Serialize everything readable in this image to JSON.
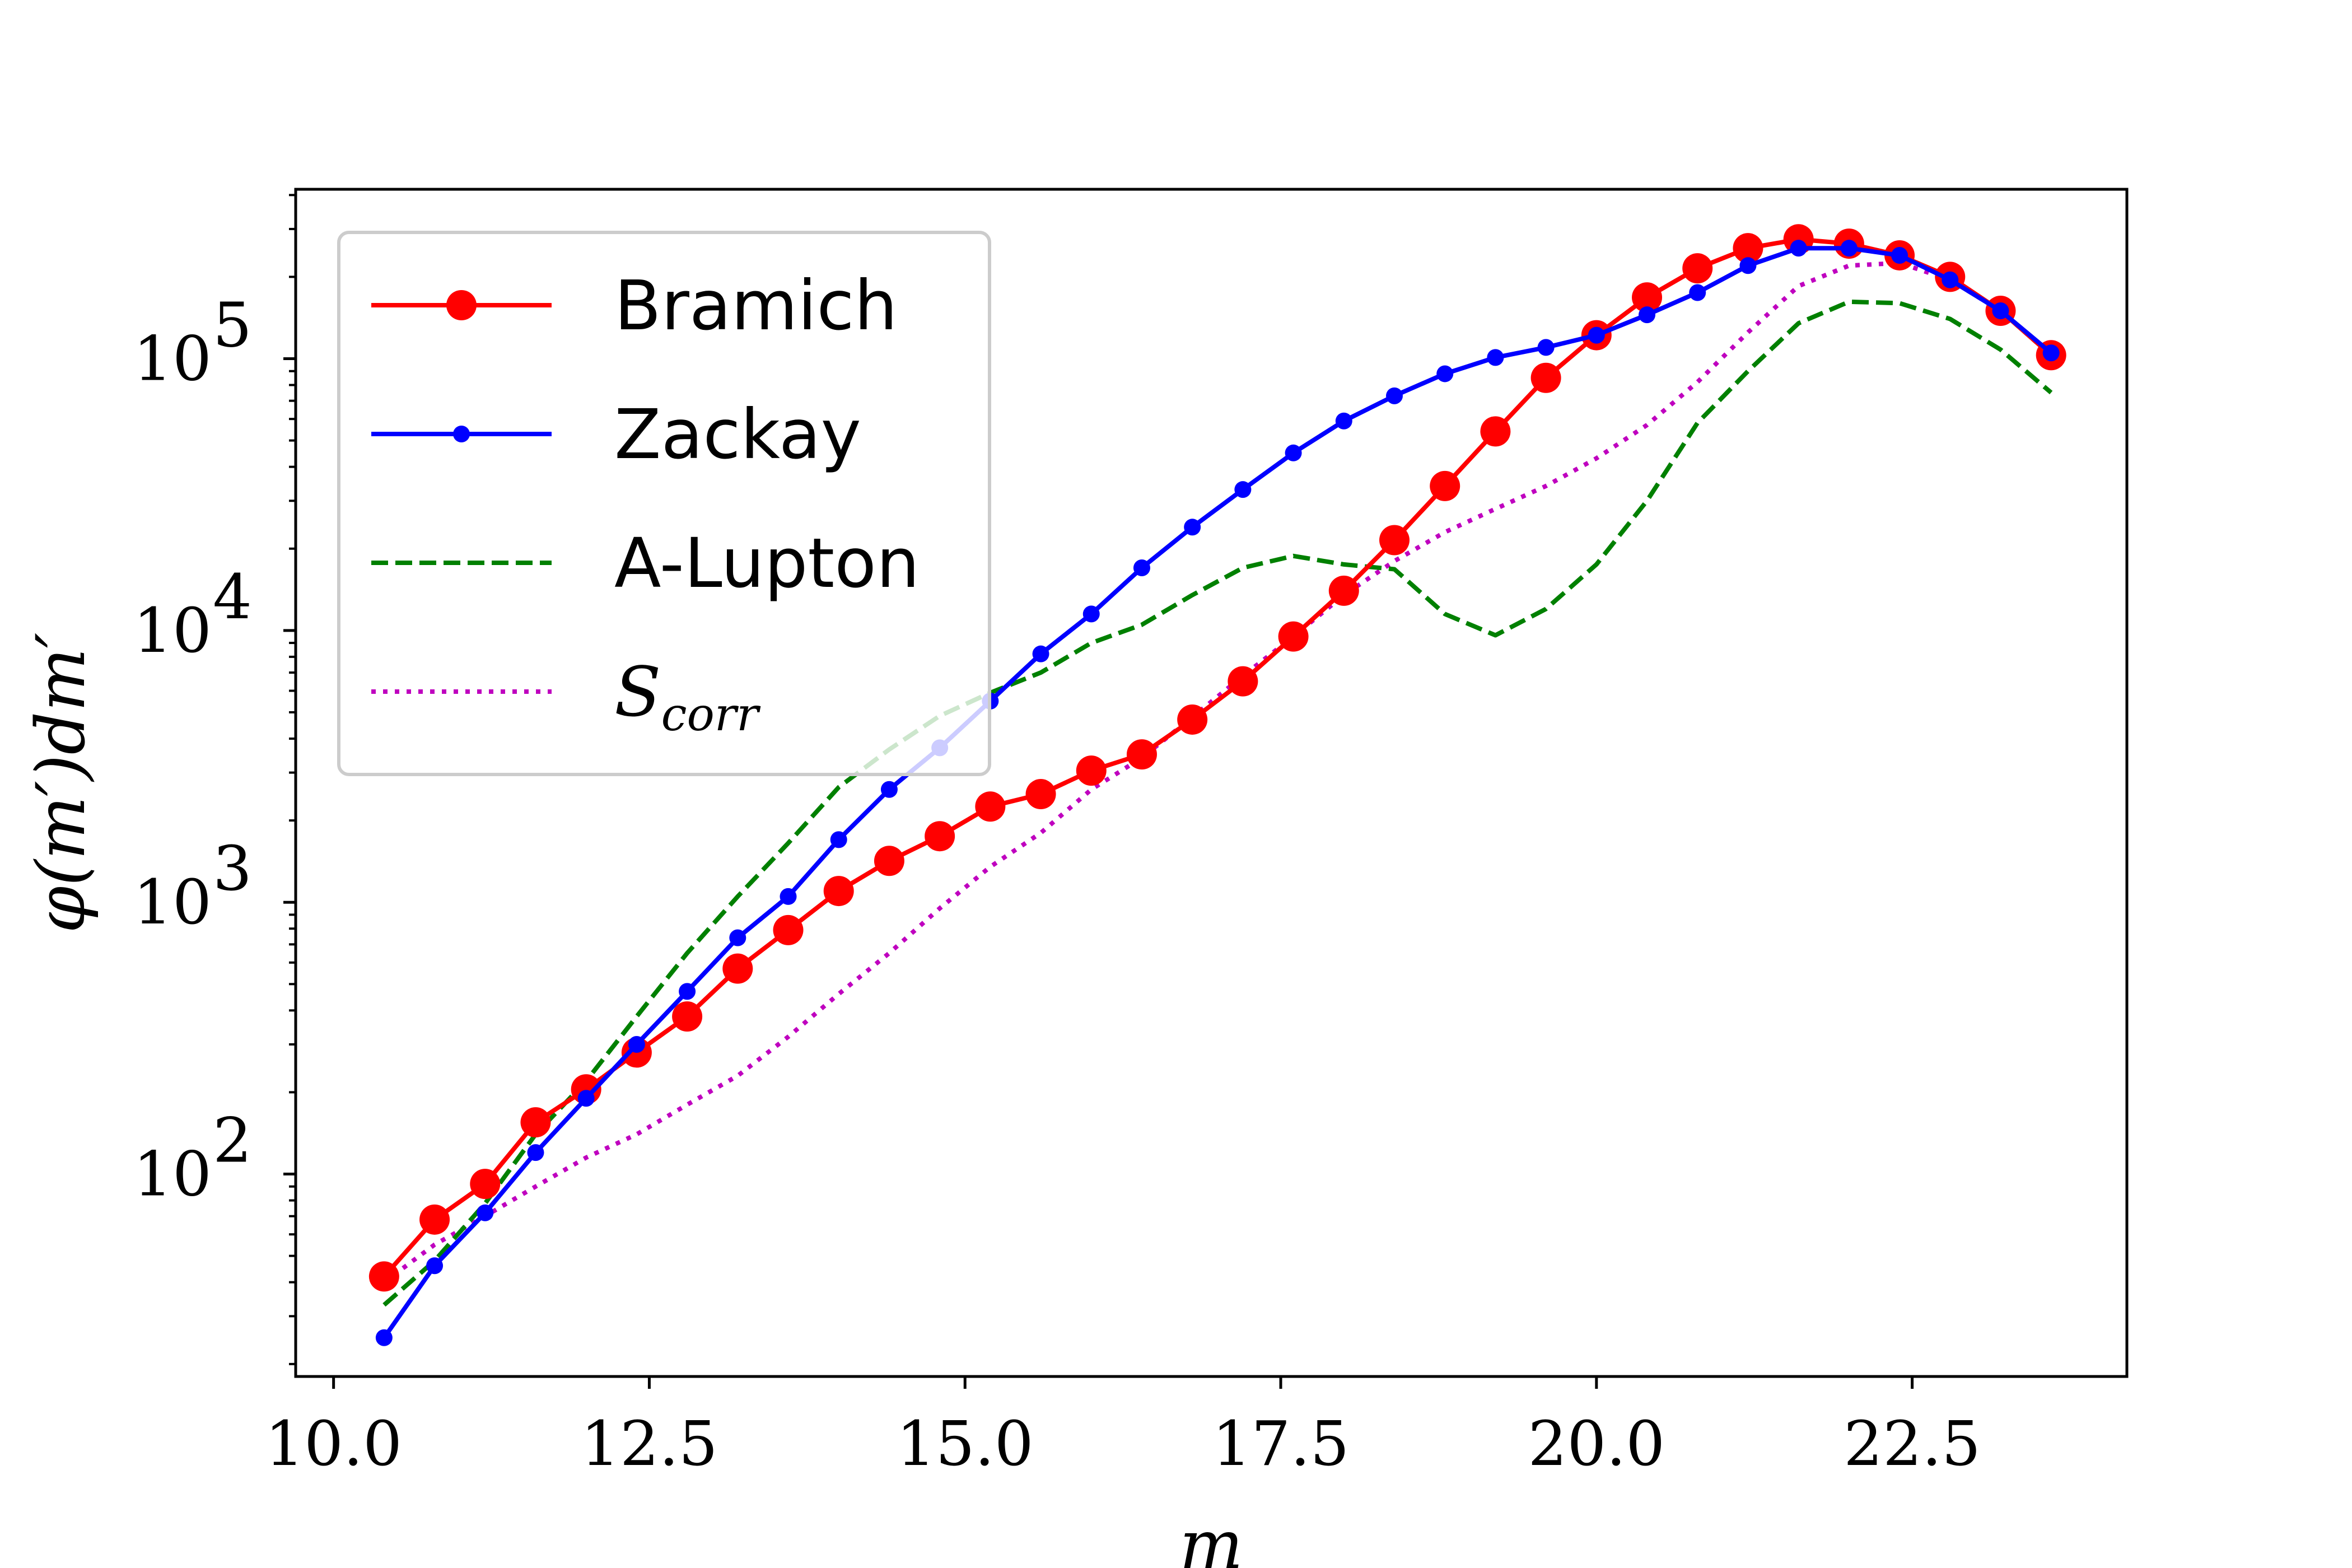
{
  "chart_data": {
    "type": "line",
    "xlabel": "m",
    "ylabel": "φ(m′)dm′",
    "x_ticks": [
      "10.0",
      "12.5",
      "15.0",
      "17.5",
      "20.0",
      "22.5"
    ],
    "x_tick_values": [
      10.0,
      12.5,
      15.0,
      17.5,
      20.0,
      22.5
    ],
    "y_ticks": [
      "10",
      "10",
      "10",
      "10"
    ],
    "y_tick_exponents": [
      "2",
      "3",
      "4",
      "5"
    ],
    "y_tick_values": [
      100,
      1000,
      10000,
      100000
    ],
    "y_scale": "log",
    "xlim": [
      9.7,
      24.2
    ],
    "ylim": [
      18,
      420000
    ],
    "grid": false,
    "legend_position": "top-left",
    "x": [
      10.4,
      10.8,
      11.2,
      11.6,
      12.0,
      12.4,
      12.8,
      13.2,
      13.6,
      14.0,
      14.4,
      14.8,
      15.2,
      15.6,
      16.0,
      16.4,
      16.8,
      17.2,
      17.6,
      18.0,
      18.4,
      18.8,
      19.2,
      19.6,
      20.0,
      20.4,
      20.8,
      21.2,
      21.6,
      22.0,
      22.4,
      22.8,
      23.2,
      23.6
    ],
    "series": [
      {
        "name": "Bramich",
        "color": "#ff0000",
        "style": "solid-large-markers",
        "values": [
          42,
          68,
          92,
          155,
          205,
          280,
          380,
          570,
          790,
          1100,
          1420,
          1750,
          2250,
          2500,
          3050,
          3500,
          4700,
          6500,
          9500,
          14000,
          21500,
          34000,
          54000,
          85000,
          122000,
          168000,
          215000,
          255000,
          275000,
          265000,
          240000,
          200000,
          150000,
          103000
        ]
      },
      {
        "name": "Zackay",
        "color": "#0000ff",
        "style": "solid-small-markers",
        "values": [
          25,
          46,
          72,
          120,
          190,
          300,
          470,
          740,
          1050,
          1700,
          2600,
          3700,
          5500,
          8200,
          11500,
          17000,
          24000,
          33000,
          45000,
          59000,
          73000,
          88000,
          101000,
          110000,
          122000,
          145000,
          175000,
          220000,
          255000,
          255000,
          240000,
          195000,
          150000,
          105000
        ]
      },
      {
        "name": "A-Lupton",
        "color": "#008000",
        "style": "dashed",
        "values": [
          33,
          48,
          78,
          140,
          220,
          380,
          650,
          1050,
          1650,
          2650,
          3650,
          4850,
          5900,
          7000,
          9000,
          10500,
          13500,
          17000,
          18800,
          17500,
          16800,
          11500,
          9600,
          12000,
          17500,
          30000,
          58000,
          90000,
          135000,
          162000,
          160000,
          140000,
          108000,
          75000
        ]
      },
      {
        "name": "S",
        "name_subscript": "corr",
        "color": "#bf00bf",
        "style": "dotted",
        "values": [
          40,
          55,
          70,
          90,
          115,
          140,
          180,
          230,
          320,
          460,
          650,
          950,
          1350,
          1800,
          2600,
          3400,
          4800,
          6800,
          9500,
          13500,
          18000,
          23000,
          28000,
          34000,
          43000,
          57000,
          82000,
          125000,
          185000,
          220000,
          225000,
          195000,
          150000,
          103000
        ]
      }
    ]
  }
}
